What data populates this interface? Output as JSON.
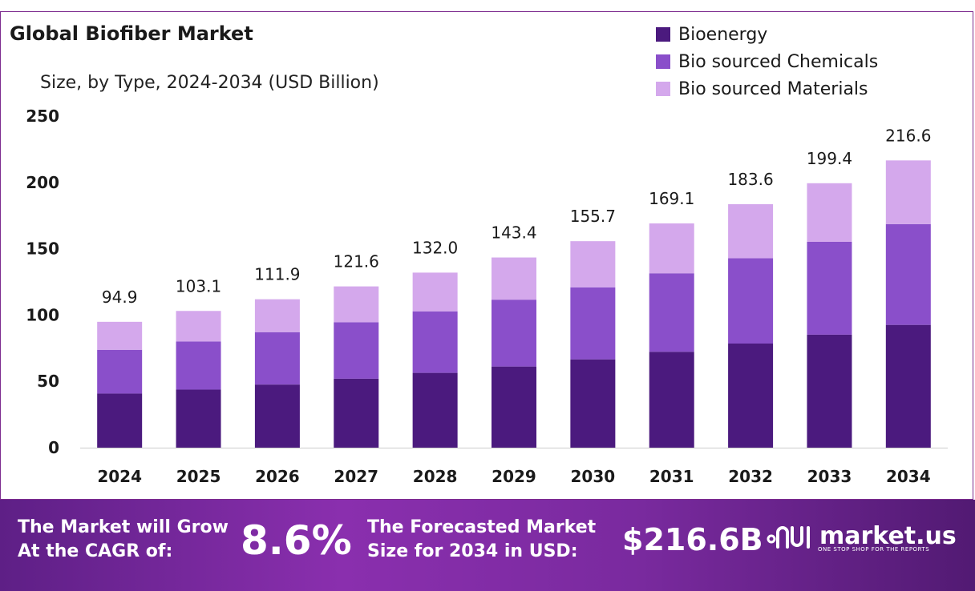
{
  "title": "Global Biofiber Market",
  "subtitle": "Size, by Type, 2024-2034 (USD Billion)",
  "colors": {
    "bioenergy": "#4b1a7e",
    "chemicals": "#8a4fca",
    "materials": "#d4a8ec",
    "accent": "#7d2c8f"
  },
  "chart_data": {
    "type": "bar",
    "stacked": true,
    "categories": [
      "2024",
      "2025",
      "2026",
      "2027",
      "2028",
      "2029",
      "2030",
      "2031",
      "2032",
      "2033",
      "2034"
    ],
    "series": [
      {
        "name": "Bioenergy",
        "values": [
          40.8,
          43.8,
          47.6,
          52.0,
          56.4,
          61.2,
          66.6,
          72.3,
          78.5,
          85.2,
          92.6
        ]
      },
      {
        "name": "Bio sourced Chemicals",
        "values": [
          33.0,
          36.3,
          39.5,
          42.6,
          46.4,
          50.4,
          54.3,
          59.2,
          64.3,
          70.0,
          76.0
        ]
      },
      {
        "name": "Bio sourced Materials",
        "values": [
          21.1,
          23.0,
          24.8,
          27.0,
          29.2,
          31.8,
          34.8,
          37.6,
          40.8,
          44.2,
          48.0
        ]
      }
    ],
    "totals": [
      "94.9",
      "103.1",
      "111.9",
      "121.6",
      "132.0",
      "143.4",
      "155.7",
      "169.1",
      "183.6",
      "199.4",
      "216.6"
    ],
    "yticks": [
      0,
      50,
      100,
      150,
      200,
      250
    ],
    "ylim": [
      0,
      250
    ],
    "grid": false,
    "legend": "top-right"
  },
  "footer": {
    "cagr_line1": "The Market will Grow",
    "cagr_line2": "At the CAGR of:",
    "cagr_value": "8.6%",
    "forecast_line1": "The Forecasted Market",
    "forecast_line2": "Size for 2034 in USD:",
    "forecast_value": "$216.6B",
    "brand": "market.us",
    "brand_tagline": "ONE STOP SHOP FOR THE REPORTS"
  }
}
